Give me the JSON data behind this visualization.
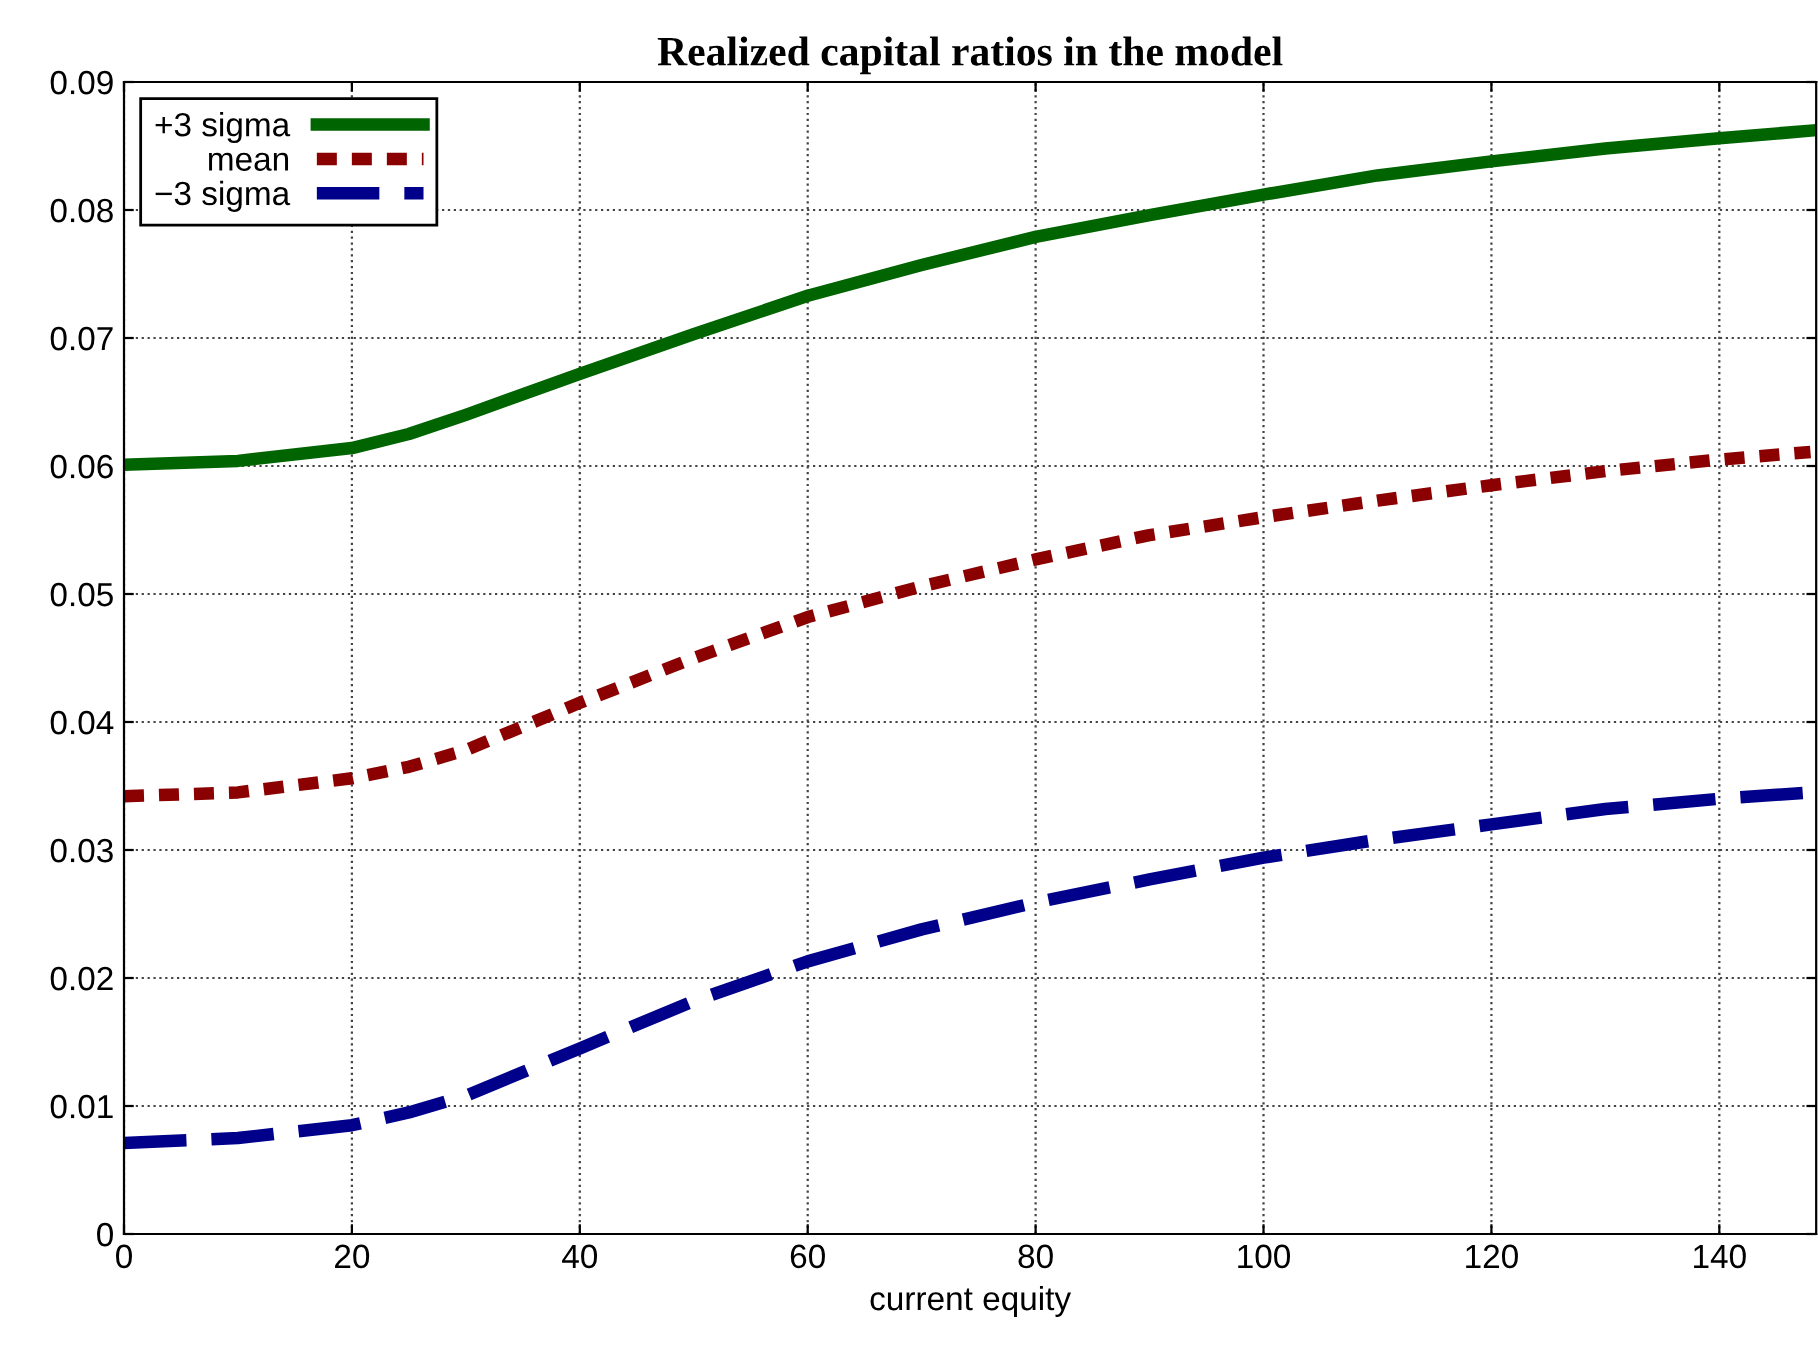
{
  "chart_data": {
    "type": "line",
    "title": "Realized capital ratios in the model",
    "xlabel": "current equity",
    "x": [
      0,
      10,
      20,
      25,
      30,
      40,
      50,
      60,
      70,
      80,
      90,
      100,
      110,
      120,
      130,
      140,
      148
    ],
    "series": [
      {
        "name": "+3 sigma",
        "color": "#006400",
        "line_style": "solid",
        "values": [
          0.0601,
          0.0604,
          0.0614,
          0.0625,
          0.064,
          0.0672,
          0.0703,
          0.0733,
          0.0757,
          0.0779,
          0.0796,
          0.0812,
          0.0827,
          0.0838,
          0.0848,
          0.0856,
          0.0862
        ]
      },
      {
        "name": "mean",
        "color": "#8b0000",
        "line_style": "dotted",
        "values": [
          0.0342,
          0.0345,
          0.0356,
          0.0365,
          0.0378,
          0.0415,
          0.045,
          0.0482,
          0.0506,
          0.0527,
          0.0546,
          0.056,
          0.0573,
          0.0585,
          0.0596,
          0.0605,
          0.0611
        ]
      },
      {
        "name": "−3 sigma",
        "color": "#00008b",
        "line_style": "dashed",
        "values": [
          0.0071,
          0.0075,
          0.0085,
          0.0095,
          0.0108,
          0.0145,
          0.0182,
          0.0213,
          0.0238,
          0.0259,
          0.0277,
          0.0294,
          0.0308,
          0.032,
          0.0332,
          0.034,
          0.0345
        ]
      }
    ],
    "xlim": [
      0,
      148.5
    ],
    "xticks": [
      0,
      20,
      40,
      60,
      80,
      100,
      120,
      140
    ],
    "ylim": [
      0,
      0.09
    ],
    "yticks": [
      0,
      0.01,
      0.02,
      0.03,
      0.04,
      0.05,
      0.06,
      0.07,
      0.08,
      0.09
    ],
    "grid": true,
    "legend": "top left"
  }
}
